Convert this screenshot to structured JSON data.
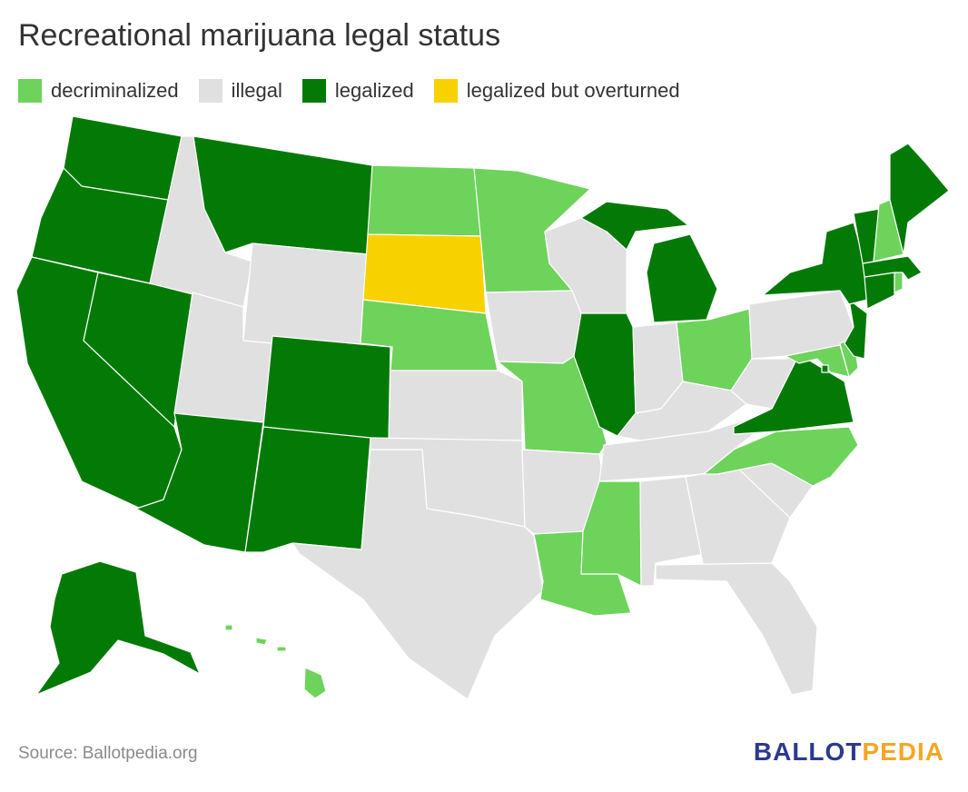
{
  "title": "Recreational marijuana legal status",
  "legend": [
    {
      "label": "decriminalized",
      "color": "#6dd35b"
    },
    {
      "label": "illegal",
      "color": "#e0e0e0"
    },
    {
      "label": "legalized",
      "color": "#037a06"
    },
    {
      "label": "legalized but overturned",
      "color": "#f8d100"
    }
  ],
  "footer": {
    "source": "Source: Ballotpedia.org",
    "brand_part1": "BALLOT",
    "brand_part2": "PEDIA",
    "brand_color1": "#2b3990",
    "brand_color2": "#f5a623"
  },
  "states": {
    "WA": "legalized",
    "OR": "legalized",
    "CA": "legalized",
    "NV": "legalized",
    "ID": "illegal",
    "MT": "legalized",
    "WY": "illegal",
    "UT": "illegal",
    "AZ": "legalized",
    "CO": "legalized",
    "NM": "legalized",
    "ND": "decriminalized",
    "SD": "legalized but overturned",
    "NE": "decriminalized",
    "KS": "illegal",
    "OK": "illegal",
    "TX": "illegal",
    "MN": "decriminalized",
    "IA": "illegal",
    "MO": "decriminalized",
    "AR": "illegal",
    "LA": "decriminalized",
    "WI": "illegal",
    "IL": "legalized",
    "MI": "legalized",
    "IN": "illegal",
    "OH": "decriminalized",
    "KY": "illegal",
    "TN": "illegal",
    "MS": "decriminalized",
    "AL": "illegal",
    "GA": "illegal",
    "FL": "illegal",
    "SC": "illegal",
    "NC": "decriminalized",
    "VA": "legalized",
    "WV": "illegal",
    "PA": "illegal",
    "NY": "legalized",
    "VT": "legalized",
    "NH": "decriminalized",
    "ME": "legalized",
    "MA": "legalized",
    "RI": "decriminalized",
    "CT": "legalized",
    "NJ": "legalized",
    "DE": "decriminalized",
    "MD": "decriminalized",
    "DC": "legalized",
    "AK": "legalized",
    "HI": "decriminalized"
  }
}
